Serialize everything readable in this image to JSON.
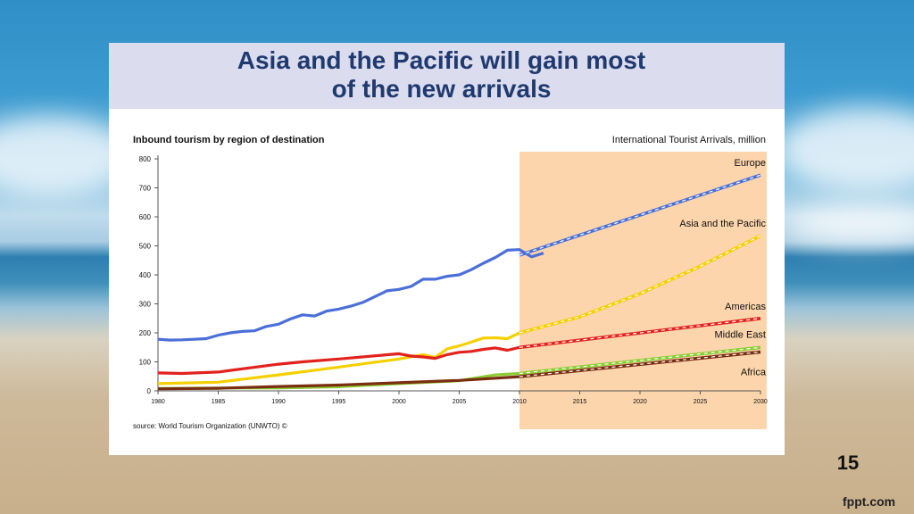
{
  "slide": {
    "title": "Asia and the Pacific will gain most\nof the new arrivals",
    "page_number": "15",
    "brand": "fppt.com"
  },
  "chart_data": {
    "type": "line",
    "title": "Inbound tourism by region of destination",
    "subtitle": "International Tourist Arrivals, million",
    "source": "source: World Tourism Organization (UNWTO) ©",
    "ylim": [
      0,
      800
    ],
    "xlim": [
      1980,
      2030
    ],
    "y_ticks": [
      "0",
      "100",
      "200",
      "300",
      "400",
      "500",
      "600",
      "700",
      "800"
    ],
    "x_ticks": [
      "1980",
      "1985",
      "1990",
      "1995",
      "2000",
      "2005",
      "2010",
      "2015",
      "2020",
      "2025",
      "2030"
    ],
    "grid": false,
    "forecast_start": 2010,
    "colors": {
      "forecast_band": "#fcd5ac"
    },
    "series": [
      {
        "name": "Europe",
        "color": "#4a6fd8",
        "actual": [
          [
            1980,
            178
          ],
          [
            1981,
            175
          ],
          [
            1982,
            176
          ],
          [
            1983,
            178
          ],
          [
            1984,
            180
          ],
          [
            1985,
            192
          ],
          [
            1986,
            200
          ],
          [
            1987,
            205
          ],
          [
            1988,
            207
          ],
          [
            1989,
            222
          ],
          [
            1990,
            230
          ],
          [
            1991,
            248
          ],
          [
            1992,
            262
          ],
          [
            1993,
            258
          ],
          [
            1994,
            275
          ],
          [
            1995,
            282
          ],
          [
            1996,
            292
          ],
          [
            1997,
            305
          ],
          [
            1998,
            325
          ],
          [
            1999,
            345
          ],
          [
            2000,
            350
          ],
          [
            2001,
            360
          ],
          [
            2002,
            385
          ],
          [
            2003,
            385
          ],
          [
            2004,
            395
          ],
          [
            2005,
            400
          ],
          [
            2006,
            418
          ],
          [
            2007,
            440
          ],
          [
            2008,
            460
          ],
          [
            2009,
            485
          ],
          [
            2010,
            487
          ],
          [
            2011,
            462
          ],
          [
            2012,
            475
          ]
        ],
        "forecast": [
          [
            2010,
            468
          ],
          [
            2030,
            744
          ]
        ]
      },
      {
        "name": "Asia and the Pacific",
        "color": "#f5d000",
        "actual": [
          [
            1980,
            25
          ],
          [
            1985,
            30
          ],
          [
            1990,
            55
          ],
          [
            1995,
            82
          ],
          [
            2000,
            110
          ],
          [
            2002,
            125
          ],
          [
            2003,
            115
          ],
          [
            2004,
            145
          ],
          [
            2005,
            155
          ],
          [
            2006,
            168
          ],
          [
            2007,
            182
          ],
          [
            2008,
            183
          ],
          [
            2009,
            180
          ],
          [
            2010,
            200
          ]
        ],
        "forecast": [
          [
            2010,
            200
          ],
          [
            2015,
            255
          ],
          [
            2020,
            335
          ],
          [
            2025,
            430
          ],
          [
            2030,
            535
          ]
        ]
      },
      {
        "name": "Americas",
        "color": "#e2221c",
        "actual": [
          [
            1980,
            62
          ],
          [
            1982,
            60
          ],
          [
            1985,
            65
          ],
          [
            1990,
            92
          ],
          [
            1992,
            100
          ],
          [
            1995,
            110
          ],
          [
            2000,
            128
          ],
          [
            2001,
            120
          ],
          [
            2002,
            117
          ],
          [
            2003,
            112
          ],
          [
            2004,
            125
          ],
          [
            2005,
            133
          ],
          [
            2006,
            136
          ],
          [
            2007,
            143
          ],
          [
            2008,
            148
          ],
          [
            2009,
            140
          ],
          [
            2010,
            150
          ]
        ],
        "forecast": [
          [
            2010,
            150
          ],
          [
            2030,
            250
          ]
        ]
      },
      {
        "name": "Middle East",
        "color": "#8ccd35",
        "actual": [
          [
            1980,
            8
          ],
          [
            1985,
            10
          ],
          [
            1990,
            10
          ],
          [
            1995,
            14
          ],
          [
            2000,
            25
          ],
          [
            2005,
            35
          ],
          [
            2008,
            55
          ],
          [
            2010,
            60
          ]
        ],
        "forecast": [
          [
            2010,
            60
          ],
          [
            2030,
            150
          ]
        ]
      },
      {
        "name": "Africa",
        "color": "#7a2e10",
        "actual": [
          [
            1980,
            7
          ],
          [
            1985,
            9
          ],
          [
            1990,
            15
          ],
          [
            1995,
            20
          ],
          [
            2000,
            28
          ],
          [
            2005,
            36
          ],
          [
            2010,
            49
          ]
        ],
        "forecast": [
          [
            2010,
            49
          ],
          [
            2030,
            134
          ]
        ]
      }
    ]
  }
}
